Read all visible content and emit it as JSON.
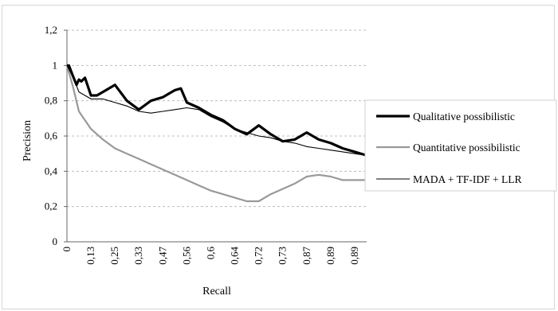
{
  "chart_data": {
    "type": "line",
    "title": "",
    "xlabel": "Recall",
    "ylabel": "Precision",
    "ylim": [
      0,
      1.2
    ],
    "y_ticks": [
      "0",
      "0,2",
      "0,4",
      "0,6",
      "0,8",
      "1",
      "1,2"
    ],
    "y_tick_values": [
      0,
      0.2,
      0.4,
      0.6,
      0.8,
      1.0,
      1.2
    ],
    "x_ticks": [
      "0",
      "0,13",
      "0,25",
      "0,33",
      "0,47",
      "0,56",
      "0,6",
      "0,64",
      "0,72",
      "0,73",
      "0,87",
      "0,89",
      "0,89"
    ],
    "x_tick_positions": [
      0,
      1,
      2,
      3,
      4,
      5,
      6,
      7,
      8,
      9,
      10,
      11,
      12
    ],
    "xlim": [
      0,
      12.5
    ],
    "grid": true,
    "legend_position": "right",
    "series": [
      {
        "name": "Qualitative possibilistic",
        "color": "#000000",
        "style": "thick",
        "x": [
          0,
          0.08,
          0.25,
          0.4,
          0.5,
          0.6,
          0.75,
          1.0,
          1.25,
          1.5,
          2.0,
          2.5,
          3.0,
          3.5,
          4.0,
          4.25,
          4.5,
          4.75,
          5.0,
          5.5,
          6.0,
          6.5,
          7.0,
          7.5,
          8.0,
          8.5,
          9.0,
          9.5,
          10.0,
          10.5,
          11.0,
          11.5,
          12.0,
          12.5
        ],
        "y": [
          1.0,
          1.0,
          0.94,
          0.89,
          0.92,
          0.91,
          0.93,
          0.83,
          0.83,
          0.85,
          0.89,
          0.8,
          0.75,
          0.8,
          0.82,
          0.84,
          0.86,
          0.87,
          0.79,
          0.76,
          0.72,
          0.69,
          0.64,
          0.61,
          0.66,
          0.61,
          0.57,
          0.58,
          0.62,
          0.58,
          0.56,
          0.53,
          0.51,
          0.49
        ]
      },
      {
        "name": "Quantitative possibilistic",
        "color": "#999999",
        "style": "medium",
        "x": [
          0,
          0.25,
          0.5,
          1.0,
          1.5,
          2.0,
          2.5,
          3.0,
          3.5,
          4.0,
          4.5,
          5.0,
          5.5,
          6.0,
          6.5,
          7.0,
          7.5,
          8.0,
          8.5,
          9.0,
          9.5,
          10.0,
          10.5,
          11.0,
          11.5,
          12.0,
          12.5
        ],
        "y": [
          1.0,
          0.88,
          0.74,
          0.64,
          0.58,
          0.53,
          0.5,
          0.47,
          0.44,
          0.41,
          0.38,
          0.35,
          0.32,
          0.29,
          0.27,
          0.25,
          0.23,
          0.23,
          0.27,
          0.3,
          0.33,
          0.37,
          0.38,
          0.37,
          0.35,
          0.35,
          0.35
        ]
      },
      {
        "name": "MADA + TF-IDF + LLR",
        "color": "#000000",
        "style": "thin",
        "x": [
          0,
          0.3,
          0.5,
          0.75,
          1.0,
          1.5,
          2.0,
          2.5,
          3.0,
          3.5,
          4.0,
          4.5,
          5.0,
          5.5,
          6.0,
          6.5,
          7.0,
          7.5,
          8.0,
          8.5,
          9.0,
          9.5,
          10.0,
          10.5,
          11.0,
          11.5,
          12.0,
          12.5
        ],
        "y": [
          1.0,
          0.92,
          0.85,
          0.83,
          0.81,
          0.81,
          0.79,
          0.77,
          0.74,
          0.73,
          0.74,
          0.75,
          0.76,
          0.75,
          0.71,
          0.68,
          0.64,
          0.62,
          0.6,
          0.59,
          0.57,
          0.56,
          0.54,
          0.53,
          0.52,
          0.51,
          0.5,
          0.49
        ]
      }
    ]
  }
}
